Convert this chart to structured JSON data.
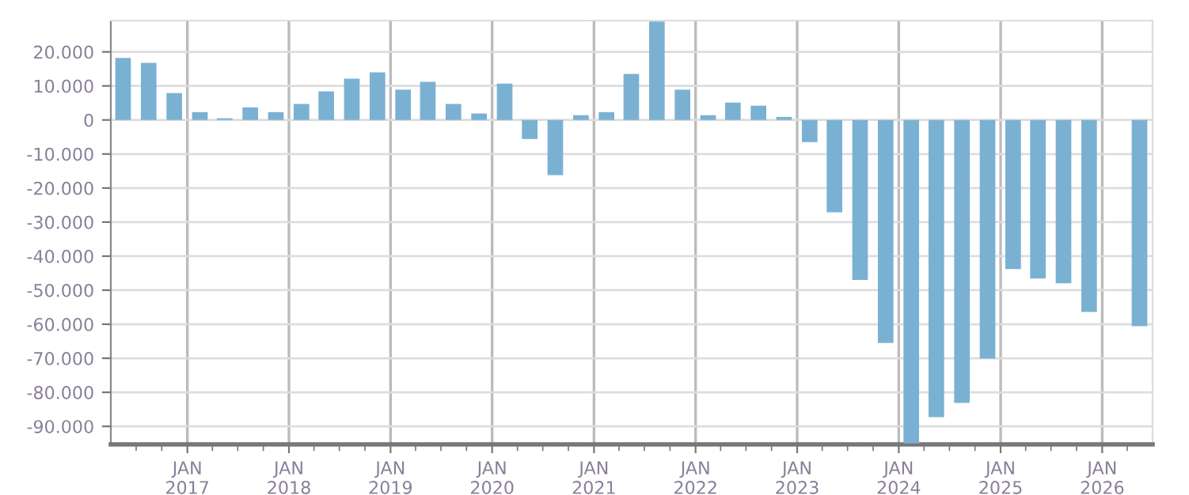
{
  "chart_data": {
    "type": "bar",
    "color": "#7ab1d3",
    "grid": true,
    "x": [
      "2016-05-15",
      "2016-08-15",
      "2016-11-15",
      "2017-02-15",
      "2017-05-15",
      "2017-08-15",
      "2017-11-15",
      "2018-02-15",
      "2018-05-15",
      "2018-08-15",
      "2018-11-15",
      "2019-02-15",
      "2019-05-15",
      "2019-08-15",
      "2019-11-15",
      "2020-02-15",
      "2020-05-15",
      "2020-08-15",
      "2020-11-15",
      "2021-02-15",
      "2021-05-15",
      "2021-08-15",
      "2021-11-15",
      "2022-02-15",
      "2022-05-15",
      "2022-08-15",
      "2022-11-15",
      "2023-02-15",
      "2023-05-15",
      "2023-08-15",
      "2023-11-15",
      "2024-02-15",
      "2024-05-15",
      "2024-08-15",
      "2024-11-15",
      "2025-02-15",
      "2025-05-15",
      "2025-08-15",
      "2025-11-15",
      "2026-02-15",
      "2026-05-15"
    ],
    "values": [
      18200,
      16800,
      7900,
      2300,
      500,
      3700,
      2300,
      4700,
      8400,
      12100,
      14000,
      8900,
      11200,
      4700,
      1900,
      10700,
      -5600,
      -16200,
      1400,
      2300,
      13500,
      28900,
      8900,
      1400,
      5100,
      4200,
      900,
      -6500,
      -27100,
      -47000,
      -65500,
      -95000,
      -87300,
      -83100,
      -70100,
      -43800,
      -46600,
      -48000,
      -56400,
      null,
      -60600
    ],
    "xlim": [
      "2016-04-01",
      "2026-07-01"
    ],
    "xticks": [
      {
        "value": "2016-07-01",
        "label": null
      },
      {
        "value": "2016-10-01",
        "label": null
      },
      {
        "value": "2017-01-01",
        "label": "JAN\n2017"
      },
      {
        "value": "2017-04-01",
        "label": null
      },
      {
        "value": "2017-07-01",
        "label": null
      },
      {
        "value": "2017-10-01",
        "label": null
      },
      {
        "value": "2018-01-01",
        "label": "JAN\n2018"
      },
      {
        "value": "2018-04-01",
        "label": null
      },
      {
        "value": "2018-07-01",
        "label": null
      },
      {
        "value": "2018-10-01",
        "label": null
      },
      {
        "value": "2019-01-01",
        "label": "JAN\n2019"
      },
      {
        "value": "2019-04-01",
        "label": null
      },
      {
        "value": "2019-07-01",
        "label": null
      },
      {
        "value": "2019-10-01",
        "label": null
      },
      {
        "value": "2020-01-01",
        "label": "JAN\n2020"
      },
      {
        "value": "2020-04-01",
        "label": null
      },
      {
        "value": "2020-07-01",
        "label": null
      },
      {
        "value": "2020-10-01",
        "label": null
      },
      {
        "value": "2021-01-01",
        "label": "JAN\n2021"
      },
      {
        "value": "2021-04-01",
        "label": null
      },
      {
        "value": "2021-07-01",
        "label": null
      },
      {
        "value": "2021-10-01",
        "label": null
      },
      {
        "value": "2022-01-01",
        "label": "JAN\n2022"
      },
      {
        "value": "2022-04-01",
        "label": null
      },
      {
        "value": "2022-07-01",
        "label": null
      },
      {
        "value": "2022-10-01",
        "label": null
      },
      {
        "value": "2023-01-01",
        "label": "JAN\n2023"
      },
      {
        "value": "2023-04-01",
        "label": null
      },
      {
        "value": "2023-07-01",
        "label": null
      },
      {
        "value": "2023-10-01",
        "label": null
      },
      {
        "value": "2024-01-01",
        "label": "JAN\n2024"
      },
      {
        "value": "2024-04-01",
        "label": null
      },
      {
        "value": "2024-07-01",
        "label": null
      },
      {
        "value": "2024-10-01",
        "label": null
      },
      {
        "value": "2025-01-01",
        "label": "JAN\n2025"
      },
      {
        "value": "2025-04-01",
        "label": null
      },
      {
        "value": "2025-07-01",
        "label": null
      },
      {
        "value": "2025-10-01",
        "label": null
      },
      {
        "value": "2026-01-01",
        "label": "JAN\n2026"
      },
      {
        "value": "2026-04-01",
        "label": null
      }
    ],
    "ylim": [
      -95300,
      29200
    ],
    "yticks": [
      {
        "value": 20000,
        "label": "20.000"
      },
      {
        "value": 10000,
        "label": "10.000"
      },
      0,
      {
        "value": -10000,
        "label": "-10.000"
      },
      {
        "value": -20000,
        "label": "-20.000"
      },
      {
        "value": -30000,
        "label": "-30.000"
      },
      {
        "value": -40000,
        "label": "-40.000"
      },
      {
        "value": -50000,
        "label": "-50.000"
      },
      {
        "value": -60000,
        "label": "-60.000"
      },
      {
        "value": -70000,
        "label": "-70.000"
      },
      {
        "value": -80000,
        "label": "-80.000"
      },
      {
        "value": -90000,
        "label": "-90.000"
      }
    ]
  }
}
